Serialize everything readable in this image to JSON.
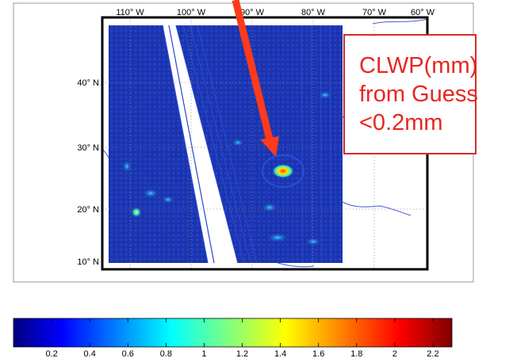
{
  "map": {
    "top_longitude_labels": [
      "110° W",
      "100° W",
      "90° W",
      "80° W",
      "70° W",
      "60° W"
    ],
    "left_latitude_labels": [
      "40° N",
      "30° N",
      "20° N",
      "10° N"
    ],
    "swath_color": "#1a35b0",
    "background_color": "#0a1890",
    "hotspot_colors": [
      "#ffe600",
      "#ff3000",
      "#22e0a0"
    ]
  },
  "annotation": {
    "lines": [
      "CLWP(mm)",
      "from Guess",
      "<0.2mm"
    ],
    "text_color": "#e8261f",
    "border_color": "#d62b2b"
  },
  "arrow": {
    "color": "#ff3a1a"
  },
  "colorbar": {
    "ticks": [
      "0.2",
      "0.4",
      "0.6",
      "0.8",
      "1",
      "1.2",
      "1.4",
      "1.6",
      "1.8",
      "2",
      "2.2"
    ],
    "min": 0,
    "max": 2.3,
    "colormap": "jet"
  }
}
